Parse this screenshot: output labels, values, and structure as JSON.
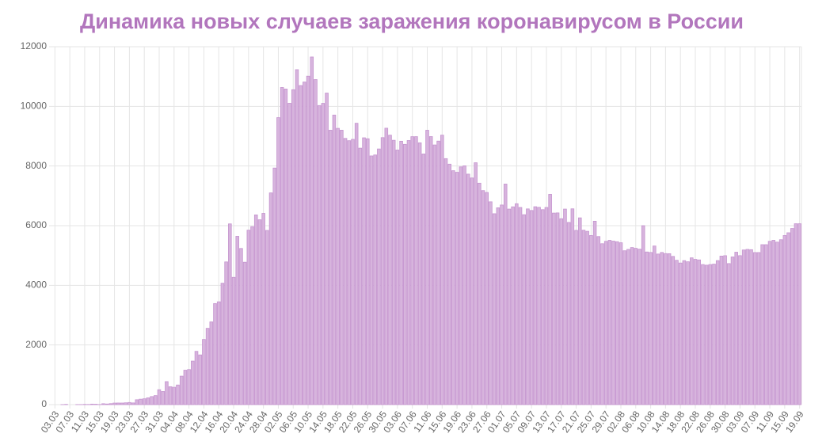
{
  "chart_data": {
    "type": "bar",
    "title": "Динамика новых случаев заражения коронавирусом в России",
    "categories": [
      "03.03",
      null,
      null,
      null,
      "07.03",
      null,
      null,
      null,
      "11.03",
      null,
      null,
      null,
      "15.03",
      null,
      null,
      null,
      "19.03",
      null,
      null,
      null,
      "23.03",
      null,
      null,
      null,
      "27.03",
      null,
      null,
      null,
      "31.03",
      null,
      null,
      null,
      "04.04",
      null,
      null,
      null,
      "08.04",
      null,
      null,
      null,
      "12.04",
      null,
      null,
      null,
      "16.04",
      null,
      null,
      null,
      "20.04",
      null,
      null,
      null,
      "24.04",
      null,
      null,
      null,
      "28.04",
      null,
      null,
      null,
      "02.05",
      null,
      null,
      null,
      "06.05",
      null,
      null,
      null,
      "10.05",
      null,
      null,
      null,
      "14.05",
      null,
      null,
      null,
      "18.05",
      null,
      null,
      null,
      "22.05",
      null,
      null,
      null,
      "26.05",
      null,
      null,
      null,
      "30.05",
      null,
      null,
      null,
      "03.06",
      null,
      null,
      null,
      "07.06",
      null,
      null,
      null,
      "11.06",
      null,
      null,
      null,
      "15.06",
      null,
      null,
      null,
      "19.06",
      null,
      null,
      null,
      "23.06",
      null,
      null,
      null,
      "27.06",
      null,
      null,
      null,
      "01.07",
      null,
      null,
      null,
      "05.07",
      null,
      null,
      null,
      "09.07",
      null,
      null,
      null,
      "13.07",
      null,
      null,
      null,
      "17.07",
      null,
      null,
      null,
      "21.07",
      null,
      null,
      null,
      "25.07",
      null,
      null,
      null,
      "29.07",
      null,
      null,
      null,
      "02.08",
      null,
      null,
      null,
      "06.08",
      null,
      null,
      null,
      "10.08",
      null,
      null,
      null,
      "14.08",
      null,
      null,
      null,
      "18.08",
      null,
      null,
      null,
      "22.08",
      null,
      null,
      null,
      "26.08",
      null,
      null,
      null,
      "30.08",
      null,
      null,
      null,
      "03.09",
      null,
      null,
      null,
      "07.09",
      null,
      null,
      null,
      "11.09",
      null,
      null,
      null,
      "15.09",
      null,
      null,
      null,
      "19.09"
    ],
    "values": [
      0,
      0,
      1,
      9,
      0,
      0,
      3,
      3,
      8,
      6,
      17,
      14,
      4,
      30,
      21,
      33,
      52,
      54,
      53,
      61,
      71,
      57,
      163,
      182,
      196,
      228,
      270,
      302,
      500,
      440,
      771,
      601,
      582,
      658,
      954,
      1154,
      1175,
      1459,
      1786,
      1667,
      2186,
      2558,
      2774,
      3388,
      3448,
      4070,
      4785,
      6060,
      4268,
      5642,
      5236,
      4774,
      5849,
      5966,
      6361,
      6198,
      6411,
      5841,
      7099,
      7933,
      9623,
      10633,
      10581,
      10102,
      10559,
      11231,
      10699,
      10817,
      11012,
      11656,
      10899,
      10028,
      10100,
      10446,
      9200,
      9709,
      9263,
      9200,
      8926,
      8849,
      8894,
      9434,
      8599,
      8946,
      8915,
      8338,
      8371,
      8572,
      8952,
      9268,
      9035,
      8863,
      8536,
      8831,
      8726,
      8855,
      8984,
      8985,
      8779,
      8404,
      9199,
      8987,
      8706,
      8835,
      9035,
      8248,
      8063,
      7843,
      7790,
      7972,
      8007,
      7728,
      7600,
      8110,
      7425,
      7176,
      7113,
      6800,
      6400,
      6600,
      6693,
      7395,
      6556,
      6632,
      6736,
      6611,
      6368,
      6562,
      6509,
      6635,
      6615,
      6537,
      6611,
      7050,
      6422,
      6428,
      6234,
      6556,
      6109,
      6565,
      5842,
      6262,
      5848,
      5811,
      5671,
      6149,
      5635,
      5395,
      5475,
      5509,
      5482,
      5462,
      5427,
      5159,
      5204,
      5267,
      5241,
      5212,
      6000,
      5118,
      5102,
      5318,
      5049,
      5102,
      5065,
      5061,
      4969,
      4839,
      4748,
      4828,
      4790,
      4921,
      4870,
      4852,
      4696,
      4676,
      4696,
      4711,
      4829,
      4980,
      4993,
      4729,
      4952,
      5110,
      4995,
      5185,
      5205,
      5195,
      5099,
      5099,
      5363,
      5363,
      5475,
      5509,
      5449,
      5529,
      5670,
      5762,
      5905,
      6065,
      6065
    ],
    "color": "#d7b4dd",
    "border_color": "#c594cf",
    "ylim": [
      0,
      12000
    ],
    "yticks": [
      0,
      2000,
      4000,
      6000,
      8000,
      10000,
      12000
    ],
    "grid": true
  }
}
